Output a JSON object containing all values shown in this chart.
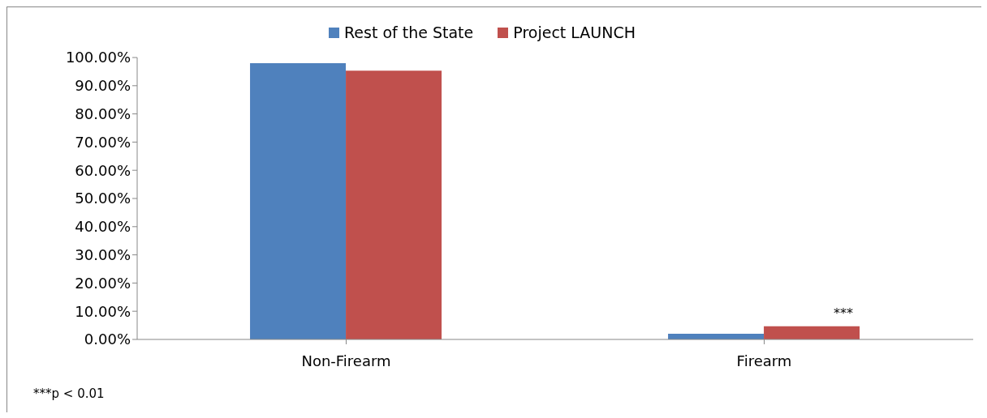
{
  "chart_data": {
    "type": "bar",
    "categories": [
      "Non-Firearm",
      "Firearm"
    ],
    "series": [
      {
        "name": "Rest of the State",
        "color": "#4f81bd",
        "values": [
          98,
          2
        ]
      },
      {
        "name": "Project LAUNCH",
        "color": "#c0504d",
        "values": [
          95.3,
          4.7
        ]
      }
    ],
    "ylim": [
      0,
      100
    ],
    "yticks": [
      {
        "value": 0,
        "label": "0.00%"
      },
      {
        "value": 10,
        "label": "10.00%"
      },
      {
        "value": 20,
        "label": "20.00%"
      },
      {
        "value": 30,
        "label": "30.00%"
      },
      {
        "value": 40,
        "label": "40.00%"
      },
      {
        "value": 50,
        "label": "50.00%"
      },
      {
        "value": 60,
        "label": "60.00%"
      },
      {
        "value": 70,
        "label": "70.00%"
      },
      {
        "value": 80,
        "label": "80.00%"
      },
      {
        "value": 90,
        "label": "90.00%"
      },
      {
        "value": 100,
        "label": "100.00%"
      }
    ],
    "grid": false,
    "legend": "top",
    "annotations": [
      "***",
      "***p < 0.01"
    ]
  }
}
